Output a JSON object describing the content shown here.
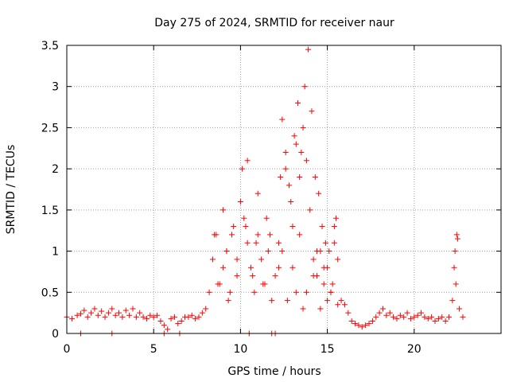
{
  "chart_data": {
    "type": "scatter",
    "title": "Day 275 of 2024, SRMTID for receiver naur",
    "xlabel": "GPS time / hours",
    "ylabel": "SRMTID / TECUs",
    "xlim": [
      0,
      25
    ],
    "ylim": [
      0,
      3.5
    ],
    "x_ticks": [
      0,
      5,
      10,
      15,
      20
    ],
    "y_ticks": [
      0,
      0.5,
      1,
      1.5,
      2,
      2.5,
      3,
      3.5
    ],
    "x_tick_labels": [
      "0",
      "5",
      "10",
      "15",
      "20"
    ],
    "y_tick_labels": [
      "0",
      "0.5",
      "1",
      "1.5",
      "2",
      "2.5",
      "3",
      "3.5"
    ],
    "grid": true,
    "marker": "+",
    "color": "#ff0000",
    "series": [
      {
        "name": "naur",
        "x": [
          0.0,
          0.3,
          0.6,
          0.8,
          1.0,
          1.2,
          1.4,
          1.6,
          1.8,
          2.0,
          2.2,
          2.4,
          2.6,
          2.8,
          3.0,
          3.2,
          3.4,
          3.6,
          3.8,
          4.0,
          4.2,
          4.4,
          4.6,
          4.8,
          5.0,
          5.2,
          5.4,
          5.6,
          5.8,
          6.0,
          6.2,
          6.4,
          6.6,
          6.8,
          7.0,
          7.2,
          7.4,
          7.6,
          7.8,
          8.0,
          8.2,
          8.4,
          8.6,
          8.8,
          9.0,
          9.2,
          9.4,
          9.6,
          9.8,
          10.0,
          10.1,
          10.2,
          10.4,
          10.6,
          10.8,
          11.0,
          11.2,
          11.4,
          11.6,
          11.8,
          12.0,
          12.2,
          12.4,
          12.6,
          12.8,
          13.0,
          13.2,
          13.4,
          13.6,
          13.8,
          14.0,
          14.2,
          14.4,
          14.6,
          14.8,
          15.0,
          15.2,
          15.4,
          15.6,
          15.8,
          16.0,
          16.2,
          16.4,
          16.6,
          16.8,
          17.0,
          17.2,
          17.4,
          17.6,
          17.8,
          18.0,
          18.2,
          18.4,
          18.6,
          18.8,
          19.0,
          19.2,
          19.4,
          19.6,
          19.8,
          20.0,
          20.2,
          20.4,
          20.6,
          20.8,
          21.0,
          21.2,
          21.4,
          21.6,
          21.8,
          22.0,
          22.2,
          22.3,
          22.4,
          22.6,
          22.8,
          0.8,
          2.6,
          5.6,
          6.5,
          10.5,
          11.8,
          12.0,
          9.0,
          9.5,
          10.4,
          11.0,
          11.5,
          12.3,
          12.6,
          12.9,
          13.1,
          13.3,
          13.5,
          13.7,
          13.9,
          14.1,
          14.3,
          14.5,
          14.7,
          14.9,
          15.1,
          15.3,
          15.5,
          8.5,
          9.2,
          9.8,
          10.7,
          11.3,
          12.2,
          12.7,
          13.2,
          13.6,
          13.8,
          14.2,
          14.6,
          15.0,
          15.4,
          8.7,
          9.3,
          10.3,
          10.9,
          11.7,
          12.4,
          13.0,
          13.4,
          14.4,
          14.8,
          15.2,
          15.6,
          22.35,
          22.45,
          22.5
        ],
        "y": [
          0.2,
          0.18,
          0.22,
          0.24,
          0.28,
          0.2,
          0.25,
          0.3,
          0.22,
          0.27,
          0.2,
          0.25,
          0.3,
          0.22,
          0.25,
          0.2,
          0.28,
          0.22,
          0.3,
          0.2,
          0.25,
          0.2,
          0.18,
          0.22,
          0.2,
          0.22,
          0.15,
          0.1,
          0.05,
          0.18,
          0.2,
          0.12,
          0.15,
          0.2,
          0.2,
          0.22,
          0.18,
          0.2,
          0.25,
          0.3,
          0.5,
          0.9,
          1.2,
          0.6,
          0.8,
          1.0,
          0.5,
          1.3,
          0.7,
          1.6,
          2.0,
          1.4,
          1.1,
          0.8,
          0.5,
          1.2,
          0.9,
          0.6,
          1.0,
          0.4,
          0.7,
          1.1,
          2.6,
          2.2,
          1.8,
          1.3,
          2.3,
          1.9,
          2.5,
          2.1,
          1.5,
          0.9,
          0.7,
          1.0,
          0.6,
          0.8,
          0.5,
          1.1,
          0.9,
          0.4,
          0.35,
          0.25,
          0.15,
          0.12,
          0.1,
          0.08,
          0.1,
          0.12,
          0.15,
          0.2,
          0.25,
          0.3,
          0.22,
          0.25,
          0.2,
          0.18,
          0.22,
          0.2,
          0.25,
          0.18,
          0.2,
          0.22,
          0.25,
          0.2,
          0.18,
          0.2,
          0.15,
          0.18,
          0.2,
          0.15,
          0.2,
          0.4,
          0.8,
          0.6,
          0.3,
          0.2,
          0.0,
          0.0,
          0.0,
          0.0,
          0.0,
          0.0,
          0.0,
          1.5,
          1.2,
          2.1,
          1.7,
          1.4,
          1.9,
          2.0,
          1.6,
          2.4,
          2.8,
          2.2,
          3.0,
          3.45,
          2.7,
          1.9,
          1.7,
          1.3,
          1.1,
          1.0,
          0.6,
          1.4,
          1.2,
          1.0,
          0.9,
          0.7,
          0.6,
          0.8,
          0.4,
          0.5,
          0.3,
          0.5,
          0.7,
          0.3,
          0.4,
          1.3,
          0.6,
          0.4,
          1.3,
          1.1,
          1.2,
          1.0,
          0.8,
          1.2,
          1.0,
          0.8,
          0.5,
          0.35,
          1.0,
          1.2,
          1.15
        ]
      }
    ]
  }
}
